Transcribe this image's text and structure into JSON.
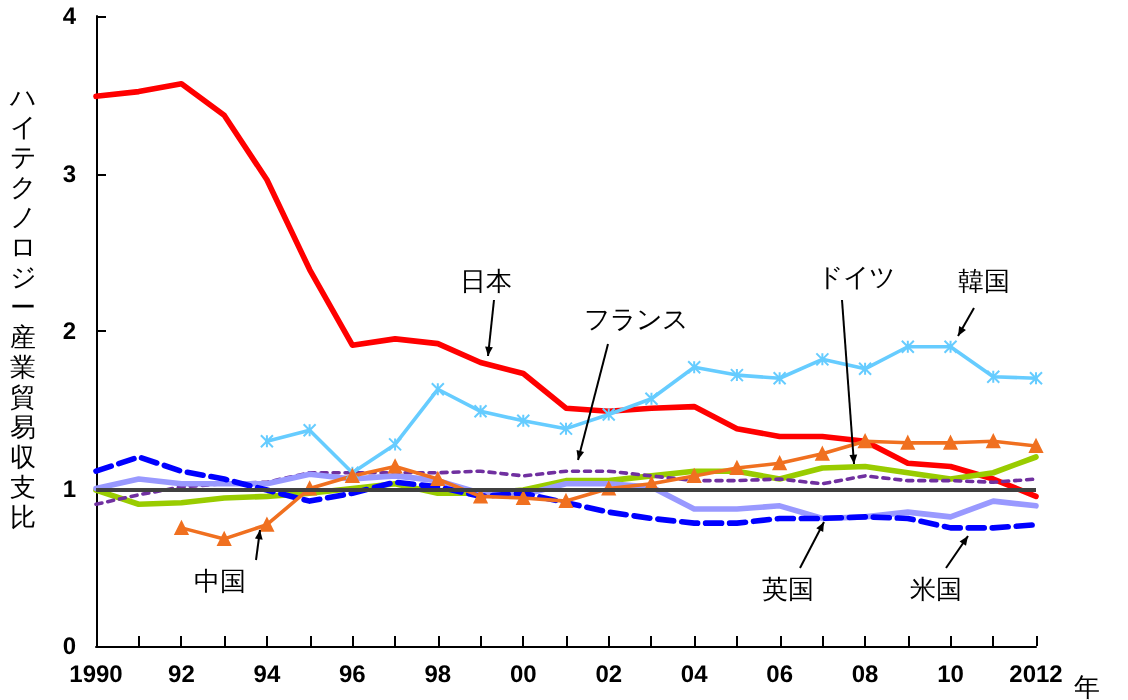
{
  "chart_data": {
    "type": "line",
    "xlabel": "年",
    "ylabel": "ハイテクノロジー産業貿易収支比",
    "x": [
      1990,
      1991,
      1992,
      1993,
      1994,
      1995,
      1996,
      1997,
      1998,
      1999,
      2000,
      2001,
      2002,
      2003,
      2004,
      2005,
      2006,
      2007,
      2008,
      2009,
      2010,
      2011,
      2012
    ],
    "xlim": [
      1990,
      2012
    ],
    "xticks": [
      1990,
      {
        "value": 1991,
        "label": null
      },
      {
        "value": 1992,
        "label": "92"
      },
      {
        "value": 1993,
        "label": null
      },
      {
        "value": 1994,
        "label": "94"
      },
      {
        "value": 1995,
        "label": null
      },
      {
        "value": 1996,
        "label": "96"
      },
      {
        "value": 1997,
        "label": null
      },
      {
        "value": 1998,
        "label": "98"
      },
      {
        "value": 1999,
        "label": null
      },
      {
        "value": 2000,
        "label": "00"
      },
      {
        "value": 2001,
        "label": null
      },
      {
        "value": 2002,
        "label": "02"
      },
      {
        "value": 2003,
        "label": null
      },
      {
        "value": 2004,
        "label": "04"
      },
      {
        "value": 2005,
        "label": null
      },
      {
        "value": 2006,
        "label": "06"
      },
      {
        "value": 2007,
        "label": null
      },
      {
        "value": 2008,
        "label": "08"
      },
      {
        "value": 2009,
        "label": null
      },
      {
        "value": 2010,
        "label": "10"
      },
      {
        "value": 2011,
        "label": null
      },
      2012
    ],
    "ylim": [
      0,
      4
    ],
    "yticks": [
      0,
      1,
      2,
      3,
      4
    ],
    "grid": false,
    "legend": false,
    "ref_lines": [
      {
        "axis": "y",
        "value": 1,
        "color": "#404040"
      }
    ],
    "series": [
      {
        "name": "日本",
        "color": "#ff0000",
        "marker": "none",
        "line_style": "solid",
        "values": [
          3.49,
          3.52,
          3.57,
          3.37,
          2.96,
          2.39,
          1.91,
          1.95,
          1.92,
          1.8,
          1.73,
          1.51,
          1.49,
          1.51,
          1.52,
          1.38,
          1.33,
          1.33,
          1.3,
          1.16,
          1.14,
          1.06,
          0.95
        ]
      },
      {
        "name": "韓国",
        "color": "#66ccff",
        "marker": "cross",
        "line_style": "solid",
        "values": [
          null,
          null,
          null,
          null,
          1.3,
          1.37,
          1.1,
          1.28,
          1.63,
          1.49,
          1.43,
          1.38,
          1.47,
          1.57,
          1.77,
          1.72,
          1.7,
          1.82,
          1.76,
          1.9,
          1.9,
          1.71,
          1.7
        ]
      },
      {
        "name": "中国",
        "color": "#f07020",
        "marker": "triangle",
        "line_style": "solid",
        "values": [
          null,
          null,
          0.75,
          0.68,
          0.77,
          1.0,
          1.08,
          1.14,
          1.06,
          0.95,
          0.94,
          0.92,
          1.0,
          1.03,
          1.08,
          1.13,
          1.16,
          1.22,
          1.3,
          1.29,
          1.29,
          1.3,
          1.27
        ]
      },
      {
        "name": "ドイツ",
        "color": "#99cc00",
        "marker": "none",
        "line_style": "solid",
        "values": [
          0.99,
          0.9,
          0.91,
          0.94,
          0.95,
          0.97,
          1.0,
          1.03,
          0.97,
          0.97,
          0.99,
          1.05,
          1.05,
          1.08,
          1.11,
          1.11,
          1.06,
          1.13,
          1.14,
          1.1,
          1.06,
          1.1,
          1.2
        ]
      },
      {
        "name": "フランス",
        "color": "#7030a0",
        "marker": "none",
        "line_style": "dotted",
        "values": [
          0.9,
          0.96,
          1.01,
          1.03,
          1.04,
          1.1,
          1.1,
          1.1,
          1.1,
          1.11,
          1.08,
          1.11,
          1.11,
          1.08,
          1.05,
          1.05,
          1.06,
          1.03,
          1.08,
          1.05,
          1.05,
          1.04,
          1.06
        ]
      },
      {
        "name": "英国",
        "color": "#9999ff",
        "marker": "none",
        "line_style": "solid",
        "values": [
          1.0,
          1.06,
          1.03,
          1.03,
          1.03,
          1.09,
          1.06,
          1.08,
          1.05,
          0.97,
          0.96,
          1.03,
          1.03,
          1.01,
          0.87,
          0.87,
          0.89,
          0.81,
          0.82,
          0.85,
          0.82,
          0.92,
          0.89
        ]
      },
      {
        "name": "米国",
        "color": "#0000ff",
        "marker": "none",
        "line_style": "dashed",
        "values": [
          1.11,
          1.2,
          1.11,
          1.06,
          0.99,
          0.92,
          0.97,
          1.04,
          1.01,
          0.95,
          0.97,
          0.91,
          0.85,
          0.81,
          0.78,
          0.78,
          0.81,
          0.81,
          0.82,
          0.81,
          0.75,
          0.75,
          0.77
        ]
      }
    ]
  }
}
